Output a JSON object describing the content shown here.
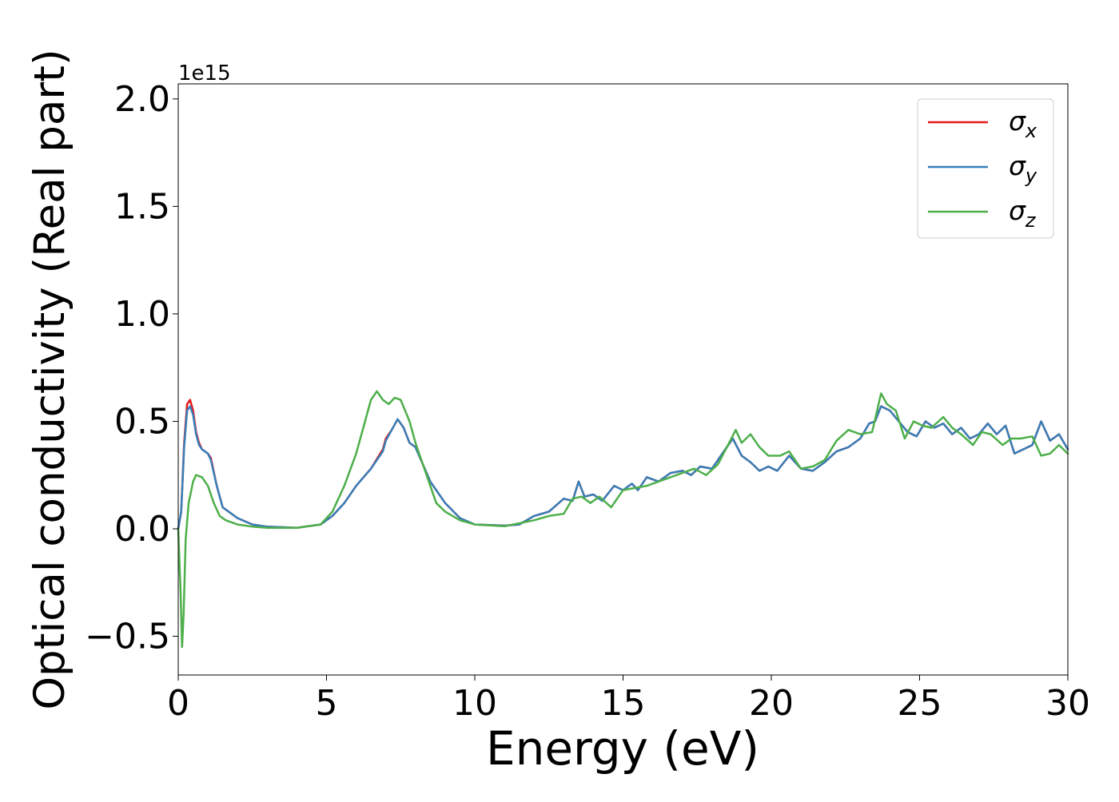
{
  "chart_data": {
    "type": "line",
    "title": "",
    "xlabel": "Energy (eV)",
    "ylabel": "Optical conductivity (Real part)",
    "y_offset_label": "1e15",
    "xlim": [
      0,
      30
    ],
    "ylim": [
      -0.68,
      2.07
    ],
    "y_scale_note": "values in units of 1e15",
    "xticks": [
      0,
      5,
      10,
      15,
      20,
      25,
      30
    ],
    "xtick_labels": [
      "0",
      "5",
      "10",
      "15",
      "20",
      "25",
      "30"
    ],
    "yticks": [
      -0.5,
      0.0,
      0.5,
      1.0,
      1.5,
      2.0
    ],
    "ytick_labels": [
      "−0.5",
      "0.0",
      "0.5",
      "1.0",
      "1.5",
      "2.0"
    ],
    "grid": false,
    "legend_position": "top-right",
    "series": [
      {
        "name": "σx",
        "legend_base": "σ",
        "legend_sub": "x",
        "color": "#e41a1c",
        "points": [
          [
            0,
            0
          ],
          [
            0.1,
            0.08
          ],
          [
            0.2,
            0.4
          ],
          [
            0.3,
            0.58
          ],
          [
            0.4,
            0.6
          ],
          [
            0.5,
            0.55
          ],
          [
            0.6,
            0.45
          ],
          [
            0.7,
            0.4
          ],
          [
            0.8,
            0.37
          ],
          [
            1.0,
            0.35
          ],
          [
            1.1,
            0.33
          ],
          [
            1.3,
            0.2
          ],
          [
            1.5,
            0.1
          ],
          [
            2.0,
            0.05
          ],
          [
            2.5,
            0.02
          ],
          [
            3.0,
            0.01
          ],
          [
            4.0,
            0.005
          ],
          [
            4.8,
            0.02
          ],
          [
            5.2,
            0.06
          ],
          [
            5.6,
            0.12
          ],
          [
            6.0,
            0.2
          ],
          [
            6.5,
            0.28
          ],
          [
            6.9,
            0.37
          ],
          [
            7.0,
            0.42
          ],
          [
            7.2,
            0.46
          ],
          [
            7.4,
            0.51
          ],
          [
            7.6,
            0.47
          ],
          [
            7.8,
            0.4
          ],
          [
            8.0,
            0.38
          ],
          [
            8.5,
            0.22
          ],
          [
            9.0,
            0.12
          ],
          [
            9.5,
            0.05
          ],
          [
            10.0,
            0.02
          ],
          [
            11.0,
            0.015
          ],
          [
            11.5,
            0.02
          ],
          [
            12.0,
            0.06
          ],
          [
            12.5,
            0.08
          ],
          [
            13.0,
            0.14
          ],
          [
            13.3,
            0.13
          ],
          [
            13.5,
            0.22
          ],
          [
            13.7,
            0.15
          ],
          [
            14.0,
            0.16
          ],
          [
            14.3,
            0.13
          ],
          [
            14.7,
            0.2
          ],
          [
            15.0,
            0.18
          ],
          [
            15.3,
            0.21
          ],
          [
            15.5,
            0.18
          ],
          [
            15.8,
            0.24
          ],
          [
            16.2,
            0.22
          ],
          [
            16.6,
            0.26
          ],
          [
            17.0,
            0.27
          ],
          [
            17.3,
            0.25
          ],
          [
            17.6,
            0.29
          ],
          [
            18.0,
            0.28
          ],
          [
            18.3,
            0.34
          ],
          [
            18.7,
            0.42
          ],
          [
            19.0,
            0.34
          ],
          [
            19.3,
            0.31
          ],
          [
            19.6,
            0.27
          ],
          [
            19.9,
            0.29
          ],
          [
            20.2,
            0.27
          ],
          [
            20.6,
            0.34
          ],
          [
            21.0,
            0.28
          ],
          [
            21.4,
            0.27
          ],
          [
            21.8,
            0.31
          ],
          [
            22.2,
            0.36
          ],
          [
            22.6,
            0.38
          ],
          [
            23.0,
            0.42
          ],
          [
            23.3,
            0.49
          ],
          [
            23.5,
            0.5
          ],
          [
            23.7,
            0.57
          ],
          [
            24.0,
            0.55
          ],
          [
            24.3,
            0.5
          ],
          [
            24.6,
            0.45
          ],
          [
            24.9,
            0.43
          ],
          [
            25.2,
            0.5
          ],
          [
            25.5,
            0.47
          ],
          [
            25.8,
            0.49
          ],
          [
            26.1,
            0.44
          ],
          [
            26.4,
            0.47
          ],
          [
            26.7,
            0.42
          ],
          [
            27.0,
            0.44
          ],
          [
            27.3,
            0.49
          ],
          [
            27.6,
            0.44
          ],
          [
            27.9,
            0.48
          ],
          [
            28.2,
            0.35
          ],
          [
            28.5,
            0.37
          ],
          [
            28.8,
            0.39
          ],
          [
            29.1,
            0.5
          ],
          [
            29.4,
            0.41
          ],
          [
            29.7,
            0.44
          ],
          [
            30.0,
            0.37
          ]
        ]
      },
      {
        "name": "σy",
        "legend_base": "σ",
        "legend_sub": "y",
        "color": "#377eb8",
        "points": [
          [
            0,
            0
          ],
          [
            0.1,
            0.08
          ],
          [
            0.2,
            0.38
          ],
          [
            0.3,
            0.55
          ],
          [
            0.4,
            0.57
          ],
          [
            0.5,
            0.53
          ],
          [
            0.6,
            0.44
          ],
          [
            0.7,
            0.39
          ],
          [
            0.8,
            0.37
          ],
          [
            1.0,
            0.35
          ],
          [
            1.1,
            0.32
          ],
          [
            1.3,
            0.2
          ],
          [
            1.5,
            0.1
          ],
          [
            2.0,
            0.05
          ],
          [
            2.5,
            0.02
          ],
          [
            3.0,
            0.01
          ],
          [
            4.0,
            0.005
          ],
          [
            4.8,
            0.02
          ],
          [
            5.2,
            0.06
          ],
          [
            5.6,
            0.12
          ],
          [
            6.0,
            0.2
          ],
          [
            6.5,
            0.28
          ],
          [
            6.9,
            0.36
          ],
          [
            7.0,
            0.41
          ],
          [
            7.2,
            0.46
          ],
          [
            7.4,
            0.51
          ],
          [
            7.6,
            0.47
          ],
          [
            7.8,
            0.4
          ],
          [
            8.0,
            0.38
          ],
          [
            8.5,
            0.22
          ],
          [
            9.0,
            0.12
          ],
          [
            9.5,
            0.05
          ],
          [
            10.0,
            0.02
          ],
          [
            11.0,
            0.015
          ],
          [
            11.5,
            0.02
          ],
          [
            12.0,
            0.06
          ],
          [
            12.5,
            0.08
          ],
          [
            13.0,
            0.14
          ],
          [
            13.3,
            0.13
          ],
          [
            13.5,
            0.22
          ],
          [
            13.7,
            0.15
          ],
          [
            14.0,
            0.16
          ],
          [
            14.3,
            0.13
          ],
          [
            14.7,
            0.2
          ],
          [
            15.0,
            0.18
          ],
          [
            15.3,
            0.21
          ],
          [
            15.5,
            0.18
          ],
          [
            15.8,
            0.24
          ],
          [
            16.2,
            0.22
          ],
          [
            16.6,
            0.26
          ],
          [
            17.0,
            0.27
          ],
          [
            17.3,
            0.25
          ],
          [
            17.6,
            0.29
          ],
          [
            18.0,
            0.28
          ],
          [
            18.3,
            0.34
          ],
          [
            18.7,
            0.42
          ],
          [
            19.0,
            0.34
          ],
          [
            19.3,
            0.31
          ],
          [
            19.6,
            0.27
          ],
          [
            19.9,
            0.29
          ],
          [
            20.2,
            0.27
          ],
          [
            20.6,
            0.34
          ],
          [
            21.0,
            0.28
          ],
          [
            21.4,
            0.27
          ],
          [
            21.8,
            0.31
          ],
          [
            22.2,
            0.36
          ],
          [
            22.6,
            0.38
          ],
          [
            23.0,
            0.42
          ],
          [
            23.3,
            0.49
          ],
          [
            23.5,
            0.5
          ],
          [
            23.7,
            0.57
          ],
          [
            24.0,
            0.55
          ],
          [
            24.3,
            0.5
          ],
          [
            24.6,
            0.45
          ],
          [
            24.9,
            0.43
          ],
          [
            25.2,
            0.5
          ],
          [
            25.5,
            0.47
          ],
          [
            25.8,
            0.49
          ],
          [
            26.1,
            0.44
          ],
          [
            26.4,
            0.47
          ],
          [
            26.7,
            0.42
          ],
          [
            27.0,
            0.44
          ],
          [
            27.3,
            0.49
          ],
          [
            27.6,
            0.44
          ],
          [
            27.9,
            0.48
          ],
          [
            28.2,
            0.35
          ],
          [
            28.5,
            0.37
          ],
          [
            28.8,
            0.39
          ],
          [
            29.1,
            0.5
          ],
          [
            29.4,
            0.41
          ],
          [
            29.7,
            0.44
          ],
          [
            30.0,
            0.37
          ]
        ]
      },
      {
        "name": "σz",
        "legend_base": "σ",
        "legend_sub": "z",
        "color": "#4daf4a",
        "points": [
          [
            0,
            0
          ],
          [
            0.08,
            -0.3
          ],
          [
            0.13,
            -0.55
          ],
          [
            0.18,
            -0.4
          ],
          [
            0.25,
            -0.05
          ],
          [
            0.35,
            0.12
          ],
          [
            0.5,
            0.22
          ],
          [
            0.6,
            0.25
          ],
          [
            0.8,
            0.24
          ],
          [
            1.0,
            0.2
          ],
          [
            1.2,
            0.12
          ],
          [
            1.4,
            0.06
          ],
          [
            1.6,
            0.04
          ],
          [
            2.0,
            0.02
          ],
          [
            2.5,
            0.01
          ],
          [
            3.0,
            0.005
          ],
          [
            4.0,
            0.005
          ],
          [
            4.8,
            0.02
          ],
          [
            5.2,
            0.08
          ],
          [
            5.6,
            0.2
          ],
          [
            6.0,
            0.35
          ],
          [
            6.3,
            0.5
          ],
          [
            6.5,
            0.6
          ],
          [
            6.7,
            0.64
          ],
          [
            6.9,
            0.6
          ],
          [
            7.1,
            0.58
          ],
          [
            7.3,
            0.61
          ],
          [
            7.5,
            0.6
          ],
          [
            7.8,
            0.5
          ],
          [
            8.0,
            0.4
          ],
          [
            8.3,
            0.28
          ],
          [
            8.7,
            0.12
          ],
          [
            9.0,
            0.08
          ],
          [
            9.5,
            0.04
          ],
          [
            10.0,
            0.02
          ],
          [
            11.0,
            0.012
          ],
          [
            12.0,
            0.04
          ],
          [
            12.5,
            0.06
          ],
          [
            13.0,
            0.07
          ],
          [
            13.3,
            0.14
          ],
          [
            13.6,
            0.15
          ],
          [
            13.9,
            0.12
          ],
          [
            14.2,
            0.15
          ],
          [
            14.6,
            0.1
          ],
          [
            15.0,
            0.18
          ],
          [
            15.4,
            0.19
          ],
          [
            15.8,
            0.2
          ],
          [
            16.2,
            0.22
          ],
          [
            16.6,
            0.24
          ],
          [
            17.0,
            0.26
          ],
          [
            17.4,
            0.28
          ],
          [
            17.8,
            0.25
          ],
          [
            18.2,
            0.3
          ],
          [
            18.5,
            0.38
          ],
          [
            18.8,
            0.46
          ],
          [
            19.0,
            0.4
          ],
          [
            19.3,
            0.44
          ],
          [
            19.6,
            0.38
          ],
          [
            19.9,
            0.34
          ],
          [
            20.3,
            0.34
          ],
          [
            20.6,
            0.36
          ],
          [
            21.0,
            0.28
          ],
          [
            21.4,
            0.29
          ],
          [
            21.8,
            0.32
          ],
          [
            22.2,
            0.41
          ],
          [
            22.6,
            0.46
          ],
          [
            23.0,
            0.44
          ],
          [
            23.4,
            0.45
          ],
          [
            23.7,
            0.63
          ],
          [
            23.9,
            0.58
          ],
          [
            24.2,
            0.55
          ],
          [
            24.5,
            0.42
          ],
          [
            24.8,
            0.5
          ],
          [
            25.1,
            0.48
          ],
          [
            25.4,
            0.47
          ],
          [
            25.8,
            0.52
          ],
          [
            26.1,
            0.47
          ],
          [
            26.4,
            0.44
          ],
          [
            26.8,
            0.39
          ],
          [
            27.1,
            0.45
          ],
          [
            27.4,
            0.44
          ],
          [
            27.8,
            0.39
          ],
          [
            28.1,
            0.42
          ],
          [
            28.4,
            0.42
          ],
          [
            28.8,
            0.43
          ],
          [
            29.1,
            0.34
          ],
          [
            29.4,
            0.35
          ],
          [
            29.7,
            0.39
          ],
          [
            30.0,
            0.35
          ]
        ]
      }
    ]
  }
}
